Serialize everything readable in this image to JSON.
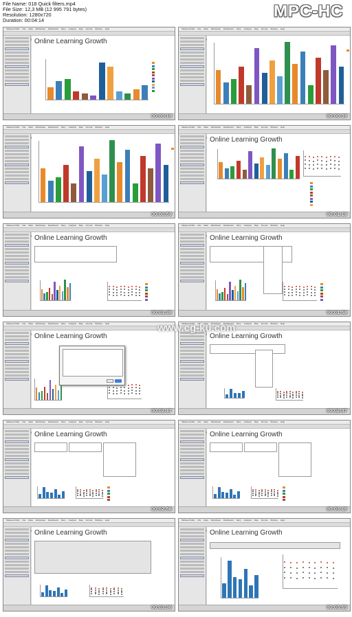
{
  "header": {
    "file_name": "File Name: 018 Quick filters.mp4",
    "file_size": "File Size: 12,3 MB (12 995 791 bytes)",
    "resolution": "Resolution: 1280x720",
    "duration": "Duration: 00:04:14",
    "player_logo": "MPC-HC"
  },
  "window": {
    "menu_items": [
      "Tableau Public",
      "File",
      "Data",
      "Worksheet",
      "Dashboard",
      "Story",
      "Analysis",
      "Map",
      "Format",
      "Window",
      "Help"
    ]
  },
  "canvas_title": "Online Learning Growth",
  "watermark": "www.cg-ku.com",
  "thumbnails": [
    {
      "id": 1,
      "timestamp": "00:00:19",
      "title": "Online Learning Growth"
    },
    {
      "id": 2,
      "timestamp": "00:00:39",
      "title": ""
    },
    {
      "id": 3,
      "timestamp": "00:00:59",
      "title": ""
    },
    {
      "id": 4,
      "timestamp": "00:01:18",
      "title": "Online Learning Growth"
    },
    {
      "id": 5,
      "timestamp": "00:01:38",
      "title": "Online Learning Growth"
    },
    {
      "id": 6,
      "timestamp": "00:01:58",
      "title": "Online Learning Growth"
    },
    {
      "id": 7,
      "timestamp": "00:02:17",
      "title": "Online Learning Growth"
    },
    {
      "id": 8,
      "timestamp": "00:02:37",
      "title": "Online Learning Growth"
    },
    {
      "id": 9,
      "timestamp": "00:02:56",
      "title": "Online Learning Growth"
    },
    {
      "id": 10,
      "timestamp": "00:03:16",
      "title": "Online Learning Growth"
    },
    {
      "id": 11,
      "timestamp": "00:03:36",
      "title": "Online Learning Growth"
    },
    {
      "id": 12,
      "timestamp": "00:03:55",
      "title": "Online Learning Growth"
    }
  ],
  "bar_colors": [
    "#e8892b",
    "#3c7fb8",
    "#2a9d3a",
    "#c0392b",
    "#8e5b3d",
    "#7e57c2",
    "#1f5f99",
    "#f0a040",
    "#5a9fd4",
    "#2f8f4e"
  ],
  "blue": "#2e75b6",
  "orange": "#e8892b"
}
